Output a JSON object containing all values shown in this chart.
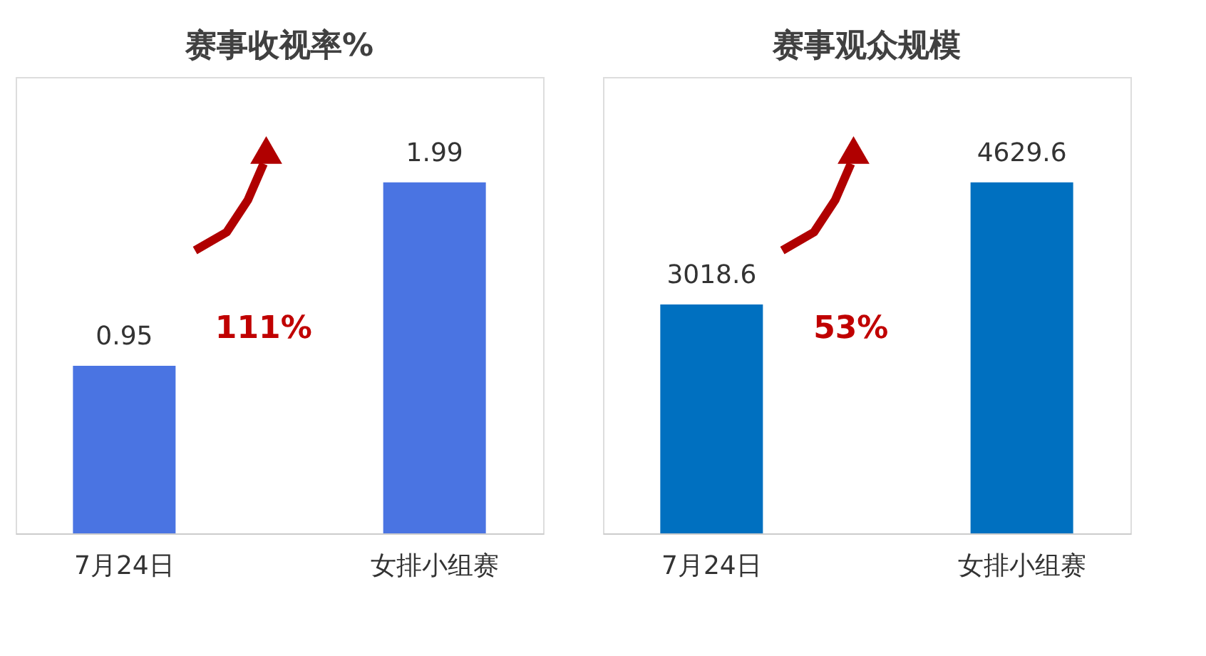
{
  "chart_data": [
    {
      "type": "bar",
      "title": "赛事收视率%",
      "categories": [
        "7月24日",
        "女排小组赛"
      ],
      "values": [
        0.95,
        1.99
      ],
      "color": "#4a74e2",
      "data_labels": true,
      "annotations": [
        "111%"
      ],
      "grid": false,
      "tick_labels": "x"
    },
    {
      "type": "bar",
      "title": "赛事观众规模",
      "categories": [
        "7月24日",
        "女排小组赛"
      ],
      "values": [
        3018.6,
        4629.6
      ],
      "color": "#0070c0",
      "data_labels": true,
      "annotations": [
        "53%"
      ],
      "grid": false,
      "tick_labels": "x"
    }
  ]
}
